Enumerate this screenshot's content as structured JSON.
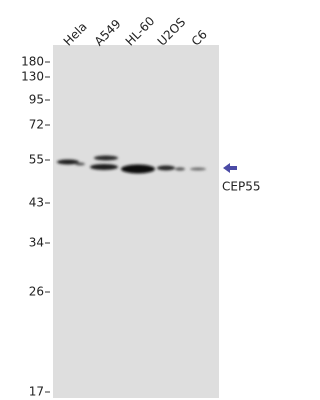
{
  "lanes": [
    "Hela",
    "A549",
    "HL-60",
    "U2OS",
    "C6"
  ],
  "markers": [
    "180",
    "130",
    "95",
    "72",
    "55",
    "43",
    "34",
    "26",
    "17"
  ],
  "target": "CEP55"
}
